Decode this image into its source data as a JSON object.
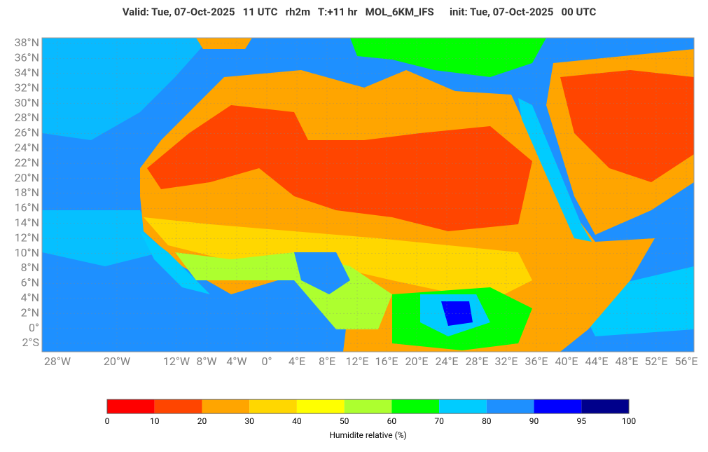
{
  "header": {
    "title": "Valid: Tue, 07-Oct-2025   11 UTC   rh2m   T:+11 hr   MOL_6KM_IFS      init: Tue, 07-Oct-2025   00 UTC"
  },
  "map": {
    "lat_labels": [
      "38°N",
      "36°N",
      "34°N",
      "32°N",
      "30°N",
      "28°N",
      "26°N",
      "24°N",
      "22°N",
      "20°N",
      "18°N",
      "16°N",
      "14°N",
      "12°N",
      "10°N",
      "8°N",
      "6°N",
      "4°N",
      "2°N",
      "0°",
      "2°S"
    ],
    "lon_labels": [
      "28°W",
      "20°W",
      "12°W",
      "8°W",
      "4°W",
      "0°",
      "4°E",
      "8°E",
      "12°E",
      "16°E",
      "20°E",
      "24°E",
      "28°E",
      "32°E",
      "36°E",
      "40°E",
      "44°E",
      "48°E",
      "52°E",
      "56°E"
    ]
  },
  "colorbar": {
    "bounds": [
      0,
      10,
      20,
      30,
      40,
      50,
      60,
      70,
      80,
      90,
      95,
      100
    ],
    "colors": [
      "#ff0000",
      "#ff4500",
      "#ffa500",
      "#ffd700",
      "#ffff00",
      "#adff2f",
      "#00ff00",
      "#00ccff",
      "#1e90ff",
      "#0000ff",
      "#00008b"
    ],
    "label": "Humidite relative (%)"
  }
}
